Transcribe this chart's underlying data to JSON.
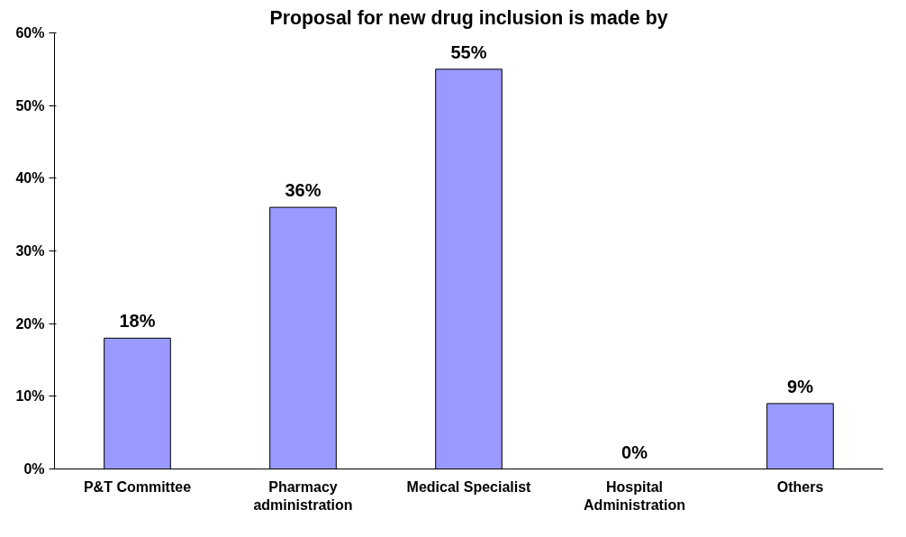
{
  "chart_data": {
    "type": "bar",
    "title": "Proposal for new drug inclusion is made by",
    "categories": [
      "P&T Committee",
      "Pharmacy\nadministration",
      "Medical Specialist",
      "Hospital\nAdministration",
      "Others"
    ],
    "values": [
      18,
      36,
      55,
      0,
      9
    ],
    "color": "#9999ff",
    "data_labels": true,
    "value_labels": [
      "18%",
      "36%",
      "55%",
      "0%",
      "9%"
    ],
    "ylim": [
      0,
      60
    ],
    "yticks": [
      {
        "value": 0,
        "label": "0%"
      },
      {
        "value": 10,
        "label": "10%"
      },
      {
        "value": 20,
        "label": "20%"
      },
      {
        "value": 30,
        "label": "30%"
      },
      {
        "value": 40,
        "label": "40%"
      },
      {
        "value": 50,
        "label": "50%"
      },
      {
        "value": 60,
        "label": "60%"
      }
    ],
    "grid": false
  }
}
